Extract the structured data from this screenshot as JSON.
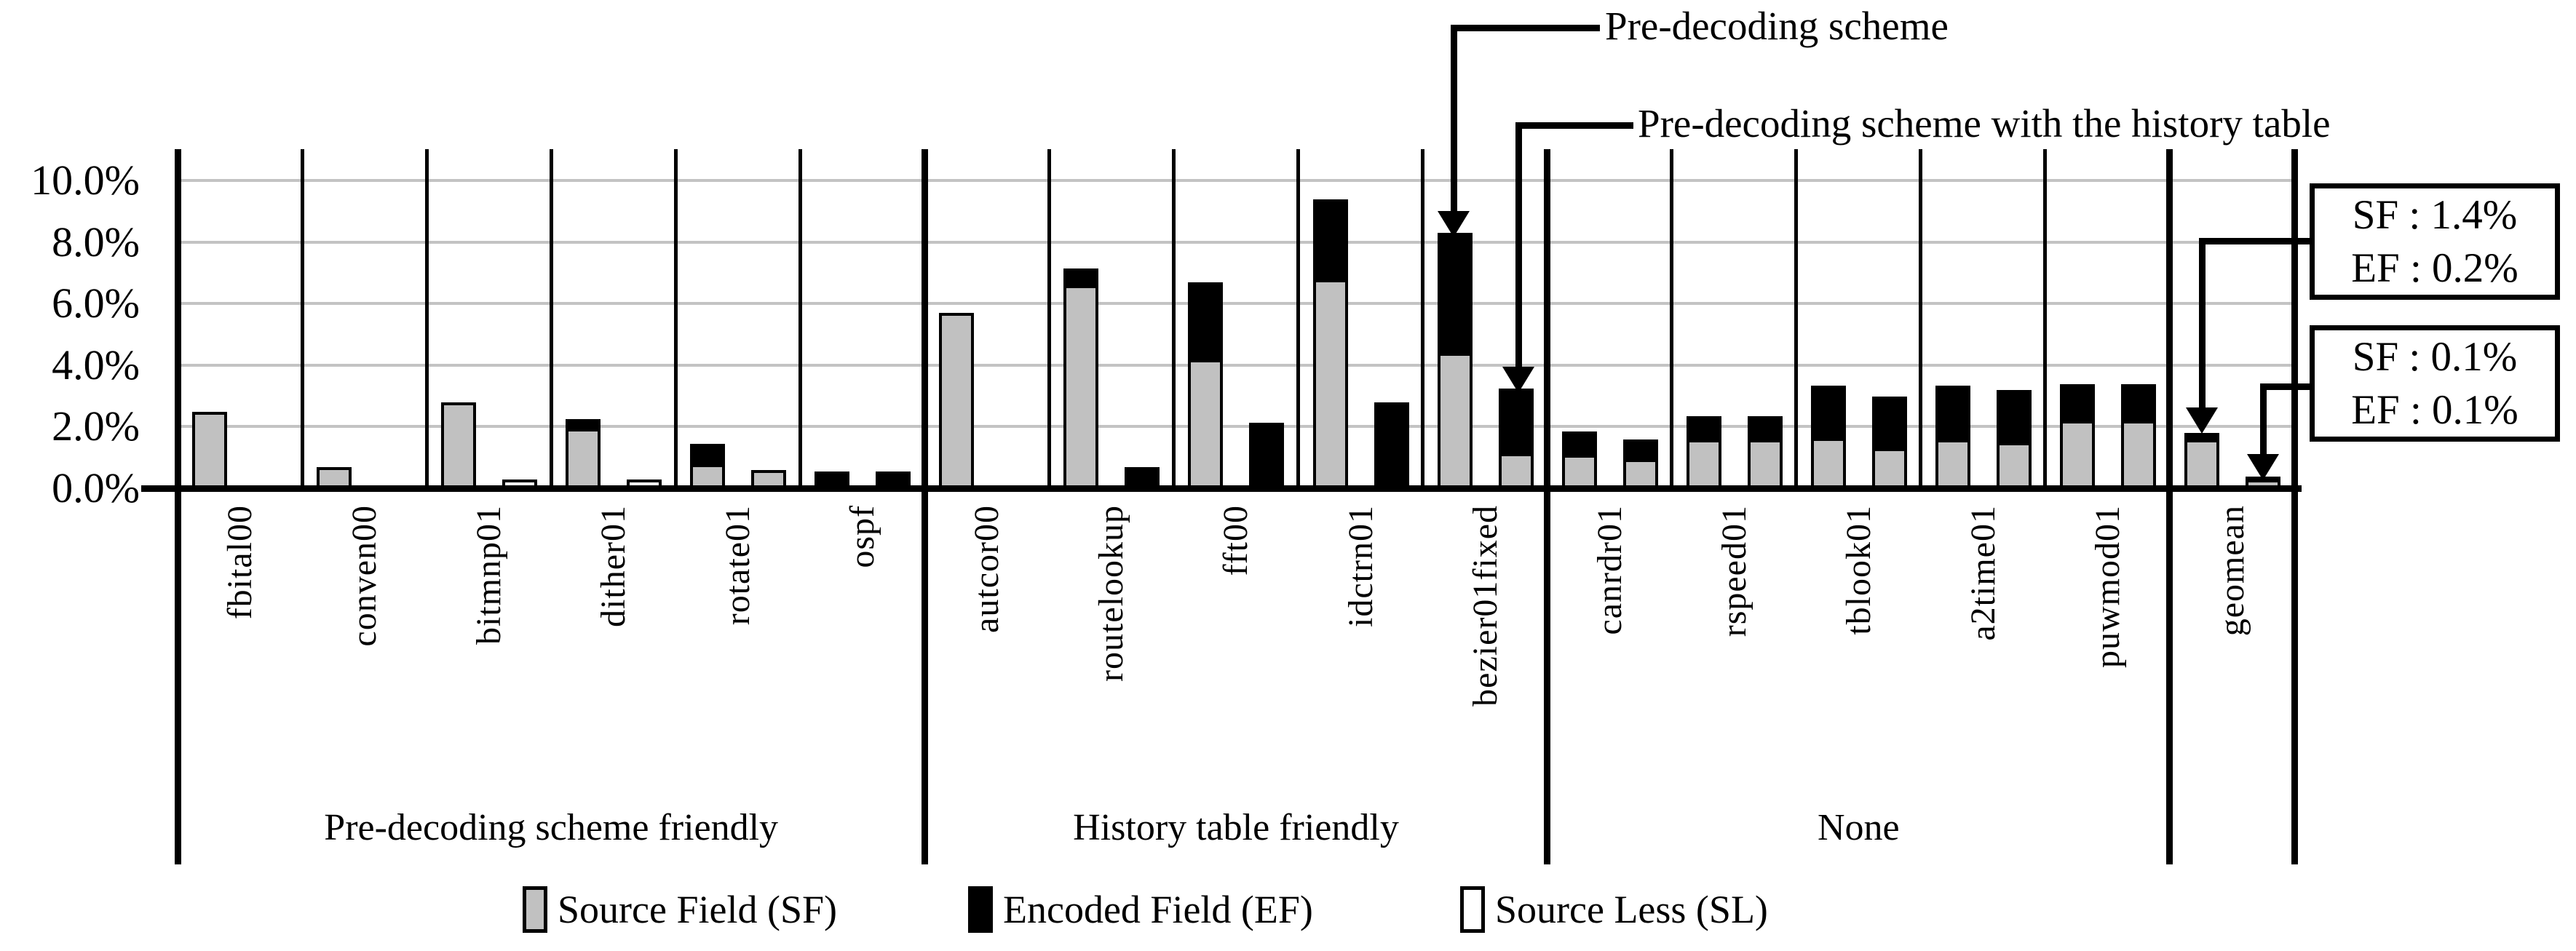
{
  "chart_data": {
    "type": "bar",
    "stacked": true,
    "title": "",
    "xlabel": "",
    "ylabel": "",
    "unit": "percent",
    "ylim": [
      0,
      11
    ],
    "grid": "horizontal",
    "yticks": [
      {
        "label": "10.0%",
        "value": 10
      },
      {
        "label": "8.0%",
        "value": 8
      },
      {
        "label": "6.0%",
        "value": 6
      },
      {
        "label": "4.0%",
        "value": 4
      },
      {
        "label": "2.0%",
        "value": 2
      },
      {
        "label": "0.0%",
        "value": 0
      }
    ],
    "legend": [
      {
        "name": "Source Field (SF)",
        "key": "sf",
        "color": "#c1c1c1"
      },
      {
        "name": "Encoded Field (EF)",
        "key": "ef",
        "color": "#000000"
      },
      {
        "name": "Source Less (SL)",
        "key": "sl",
        "color": "#ffffff"
      }
    ],
    "legend_position": "bottom",
    "bar_variants": [
      "Pre-decoding scheme",
      "Pre-decoding scheme with the history table"
    ],
    "groups": [
      {
        "label": "Pre-decoding scheme friendly",
        "start": 0,
        "end": 6
      },
      {
        "label": "History table friendly",
        "start": 6,
        "end": 11
      },
      {
        "label": "None",
        "start": 11,
        "end": 16
      },
      {
        "label": "",
        "start": 16,
        "end": 17
      }
    ],
    "benchmarks": [
      {
        "name": "fbital00",
        "bars": [
          {
            "sf": 2.3,
            "ef": 0,
            "sl": 0
          },
          {
            "sf": 0,
            "ef": 0,
            "sl": 0
          }
        ]
      },
      {
        "name": "conven00",
        "bars": [
          {
            "sf": 0.5,
            "ef": 0,
            "sl": 0
          },
          {
            "sf": 0,
            "ef": 0,
            "sl": 0
          }
        ]
      },
      {
        "name": "bitmnp01",
        "bars": [
          {
            "sf": 2.6,
            "ef": 0,
            "sl": 0
          },
          {
            "sf": 0,
            "ef": 0,
            "sl": 0.1
          }
        ]
      },
      {
        "name": "dither01",
        "bars": [
          {
            "sf": 1.75,
            "ef": 0.3,
            "sl": 0
          },
          {
            "sf": 0,
            "ef": 0,
            "sl": 0.1
          }
        ]
      },
      {
        "name": "rotate01",
        "bars": [
          {
            "sf": 0.6,
            "ef": 0.65,
            "sl": 0
          },
          {
            "sf": 0.4,
            "ef": 0,
            "sl": 0
          }
        ]
      },
      {
        "name": "ospf",
        "bars": [
          {
            "sf": 0,
            "ef": 0.35,
            "sl": 0
          },
          {
            "sf": 0,
            "ef": 0.35,
            "sl": 0
          }
        ]
      },
      {
        "name": "autcor00",
        "bars": [
          {
            "sf": 5.5,
            "ef": 0,
            "sl": 0
          },
          {
            "sf": 0,
            "ef": 0,
            "sl": 0
          }
        ]
      },
      {
        "name": "routelookup",
        "bars": [
          {
            "sf": 6.4,
            "ef": 0.55,
            "sl": 0
          },
          {
            "sf": 0,
            "ef": 0.5,
            "sl": 0
          }
        ]
      },
      {
        "name": "fft00",
        "bars": [
          {
            "sf": 4.0,
            "ef": 2.5,
            "sl": 0
          },
          {
            "sf": 0,
            "ef": 1.95,
            "sl": 0
          }
        ]
      },
      {
        "name": "idctrn01",
        "bars": [
          {
            "sf": 6.6,
            "ef": 2.6,
            "sl": 0
          },
          {
            "sf": 0,
            "ef": 2.6,
            "sl": 0
          }
        ]
      },
      {
        "name": "bezier01fixed",
        "bars": [
          {
            "sf": 4.2,
            "ef": 3.9,
            "sl": 0
          },
          {
            "sf": 0.95,
            "ef": 2.1,
            "sl": 0
          }
        ]
      },
      {
        "name": "canrdr01",
        "bars": [
          {
            "sf": 0.9,
            "ef": 0.75,
            "sl": 0
          },
          {
            "sf": 0.75,
            "ef": 0.65,
            "sl": 0
          }
        ]
      },
      {
        "name": "rspeed01",
        "bars": [
          {
            "sf": 1.4,
            "ef": 0.75,
            "sl": 0
          },
          {
            "sf": 1.4,
            "ef": 0.75,
            "sl": 0
          }
        ]
      },
      {
        "name": "tblook01",
        "bars": [
          {
            "sf": 1.45,
            "ef": 1.7,
            "sl": 0
          },
          {
            "sf": 1.1,
            "ef": 1.7,
            "sl": 0
          }
        ]
      },
      {
        "name": "a2time01",
        "bars": [
          {
            "sf": 1.4,
            "ef": 1.75,
            "sl": 0
          },
          {
            "sf": 1.3,
            "ef": 1.7,
            "sl": 0
          }
        ]
      },
      {
        "name": "puwmod01",
        "bars": [
          {
            "sf": 2.0,
            "ef": 1.2,
            "sl": 0
          },
          {
            "sf": 2.0,
            "ef": 1.2,
            "sl": 0
          }
        ]
      },
      {
        "name": "geomean",
        "bars": [
          {
            "sf": 1.4,
            "ef": 0.2,
            "sl": 0
          },
          {
            "sf": 0.1,
            "ef": 0.1,
            "sl": 0
          }
        ]
      }
    ],
    "annotations": [
      {
        "text": "Pre-decoding scheme",
        "target_benchmark": "bezier01fixed",
        "target_bar": 0
      },
      {
        "text": "Pre-decoding scheme with the history table",
        "target_benchmark": "bezier01fixed",
        "target_bar": 1
      }
    ],
    "callouts": [
      {
        "lines": [
          "SF : 1.4%",
          "EF : 0.2%"
        ],
        "target_benchmark": "geomean",
        "target_bar": 0
      },
      {
        "lines": [
          "SF : 0.1%",
          "EF : 0.1%"
        ],
        "target_benchmark": "geomean",
        "target_bar": 1
      }
    ]
  },
  "colors": {
    "sf_fill": "#c1c1c1",
    "ef_fill": "#000000",
    "sl_fill": "#ffffff",
    "gridline": "#c3c3c3",
    "line": "#000000",
    "background": "#ffffff"
  }
}
